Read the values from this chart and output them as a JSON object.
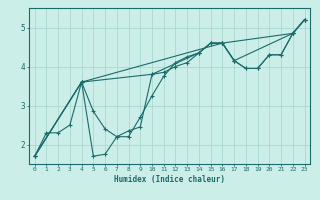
{
  "xlabel": "Humidex (Indice chaleur)",
  "ylabel": "",
  "bg_color": "#cceee8",
  "line_color": "#1a6b6b",
  "grid_color": "#aad8d0",
  "xlim": [
    -0.5,
    23.5
  ],
  "ylim": [
    1.5,
    5.5
  ],
  "yticks": [
    2,
    3,
    4,
    5
  ],
  "xticks": [
    0,
    1,
    2,
    3,
    4,
    5,
    6,
    7,
    8,
    9,
    10,
    11,
    12,
    13,
    14,
    15,
    16,
    17,
    18,
    19,
    20,
    21,
    22,
    23
  ],
  "line1_x": [
    0,
    4,
    16,
    22,
    23
  ],
  "line1_y": [
    1.7,
    3.6,
    4.6,
    4.85,
    5.2
  ],
  "line2_x": [
    0,
    1,
    2,
    3,
    4,
    5,
    6,
    7,
    8,
    9,
    10,
    11,
    12,
    13,
    14,
    15,
    16,
    17,
    18,
    19,
    20,
    21,
    22,
    23
  ],
  "line2_y": [
    1.7,
    2.3,
    2.3,
    2.5,
    3.6,
    1.7,
    1.75,
    2.2,
    2.2,
    2.7,
    3.25,
    3.75,
    4.1,
    4.25,
    4.35,
    4.6,
    4.6,
    4.15,
    3.95,
    3.95,
    4.3,
    4.3,
    4.85,
    5.2
  ],
  "line3_x": [
    0,
    4,
    5,
    6,
    7,
    8,
    9,
    10,
    11,
    12,
    13,
    14,
    15,
    16,
    17,
    18,
    19,
    20,
    21,
    22,
    23
  ],
  "line3_y": [
    1.7,
    3.6,
    2.85,
    2.4,
    2.2,
    2.35,
    2.45,
    3.8,
    3.85,
    4.0,
    4.1,
    4.35,
    4.6,
    4.6,
    4.15,
    3.95,
    3.95,
    4.3,
    4.3,
    4.85,
    5.2
  ],
  "line4_x": [
    0,
    4,
    10,
    14,
    15,
    16,
    17,
    22,
    23
  ],
  "line4_y": [
    1.7,
    3.6,
    3.8,
    4.35,
    4.6,
    4.6,
    4.15,
    4.85,
    5.2
  ]
}
